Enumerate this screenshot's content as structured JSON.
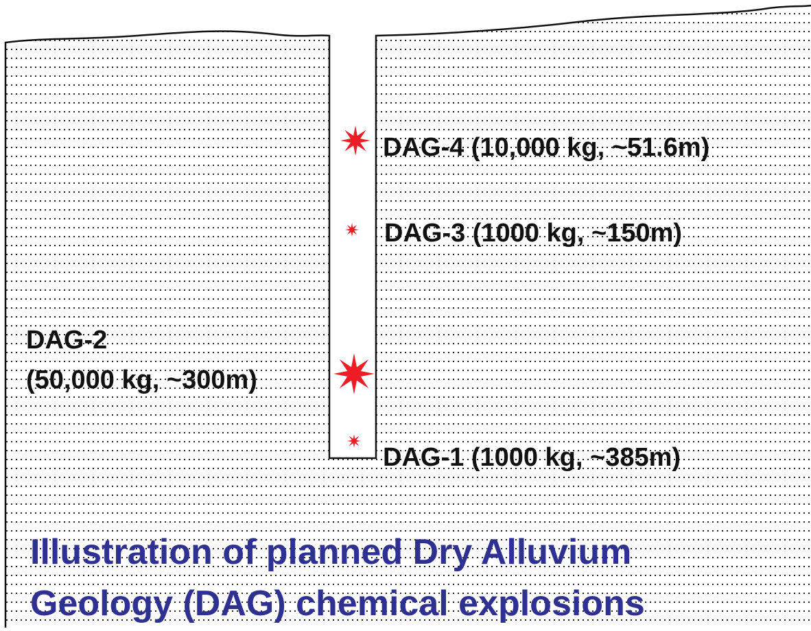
{
  "labels": [
    {
      "lines": [
        "DAG-4 (10,000 kg, ~51.6m)"
      ]
    },
    {
      "lines": [
        "DAG-3 (1000 kg, ~150m)"
      ]
    },
    {
      "lines": [
        "DAG-2",
        "(50,000 kg, ~300m)"
      ]
    },
    {
      "lines": [
        "DAG-1 (1000 kg, ~385m)"
      ]
    }
  ],
  "title": {
    "lines": [
      "Illustration of planned Dry Alluvium",
      "Geology (DAG) chemical explosions"
    ]
  }
}
